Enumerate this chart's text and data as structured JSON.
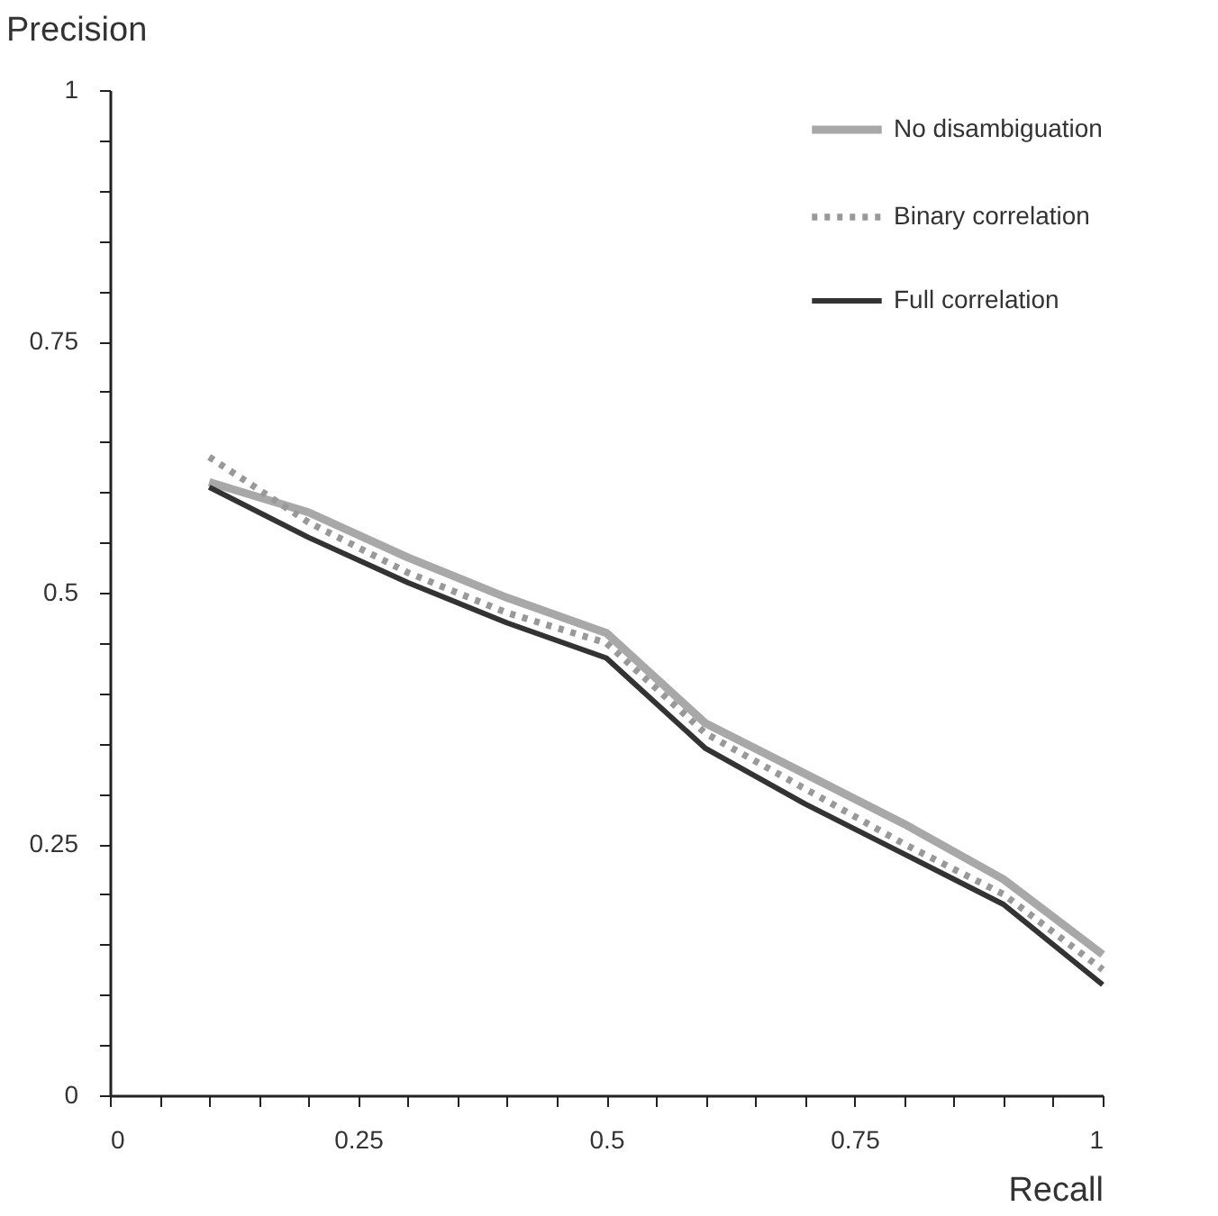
{
  "chart_data": {
    "type": "line",
    "xlabel": "Recall",
    "ylabel": "Precision",
    "x": [
      0.1,
      0.2,
      0.3,
      0.4,
      0.5,
      0.6,
      0.7,
      0.8,
      0.9,
      1
    ],
    "series": [
      {
        "name": "No disambiguation",
        "color": "#a8a8a8",
        "line_style": "solid",
        "values": [
          0.61,
          0.58,
          0.535,
          0.495,
          0.46,
          0.37,
          0.32,
          0.27,
          0.215,
          0.14
        ]
      },
      {
        "name": "Binary correlation",
        "color": "#999999",
        "line_style": "dotted",
        "values": [
          0.635,
          0.57,
          0.52,
          0.48,
          0.45,
          0.36,
          0.305,
          0.25,
          0.2,
          0.125
        ]
      },
      {
        "name": "Full correlation",
        "color": "#333333",
        "line_style": "solid",
        "values": [
          0.605,
          0.555,
          0.51,
          0.47,
          0.435,
          0.345,
          0.29,
          0.24,
          0.19,
          0.11
        ]
      }
    ],
    "xlim": [
      0,
      1
    ],
    "ylim": [
      0,
      1
    ],
    "xticks": [
      0,
      {
        "value": 0.05,
        "label": null
      },
      {
        "value": 0.1,
        "label": null
      },
      {
        "value": 0.15,
        "label": null
      },
      {
        "value": 0.2,
        "label": null
      },
      0.25,
      {
        "value": 0.3,
        "label": null
      },
      {
        "value": 0.35,
        "label": null
      },
      {
        "value": 0.4,
        "label": null
      },
      {
        "value": 0.45,
        "label": null
      },
      0.5,
      {
        "value": 0.55,
        "label": null
      },
      {
        "value": 0.6,
        "label": null
      },
      {
        "value": 0.65,
        "label": null
      },
      {
        "value": 0.7,
        "label": null
      },
      0.75,
      {
        "value": 0.8,
        "label": null
      },
      {
        "value": 0.85,
        "label": null
      },
      {
        "value": 0.9,
        "label": null
      },
      {
        "value": 0.95,
        "label": null
      },
      1
    ],
    "yticks": [
      0,
      {
        "value": 0.05,
        "label": null
      },
      {
        "value": 0.1,
        "label": null
      },
      {
        "value": 0.15,
        "label": null
      },
      {
        "value": 0.2,
        "label": null
      },
      0.25,
      {
        "value": 0.3,
        "label": null
      },
      {
        "value": 0.35,
        "label": null
      },
      {
        "value": 0.4,
        "label": null
      },
      {
        "value": 0.45,
        "label": null
      },
      0.5,
      {
        "value": 0.55,
        "label": null
      },
      {
        "value": 0.6,
        "label": null
      },
      {
        "value": 0.65,
        "label": null
      },
      {
        "value": 0.7,
        "label": null
      },
      0.75,
      {
        "value": 0.8,
        "label": null
      },
      {
        "value": 0.85,
        "label": null
      },
      {
        "value": 0.9,
        "label": null
      },
      {
        "value": 0.95,
        "label": null
      },
      1
    ],
    "grid": false,
    "legend": "top right",
    "marker": "none"
  }
}
